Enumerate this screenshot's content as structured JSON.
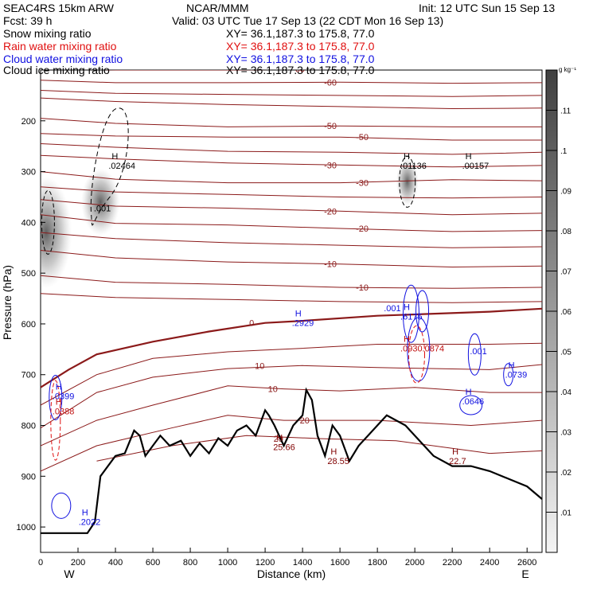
{
  "header": {
    "model": "SEAC4RS 15km ARW",
    "org": "NCAR/MMM",
    "init": "Init: 12 UTC Sun 15 Sep 13",
    "fcst": "Fcst:    39 h",
    "valid": "Valid: 03 UTC Tue 17 Sep 13 (22 CDT Mon 16 Sep 13)",
    "fields": [
      {
        "name": "Snow mixing ratio",
        "xy": "XY=   36.1,187.3 to 175.8, 77.0",
        "color": "#000000"
      },
      {
        "name": "Rain water mixing ratio",
        "xy": "XY=  36.1,187.3 to 175.8, 77.0",
        "color": "#e01010"
      },
      {
        "name": "Cloud water mixing ratio",
        "xy": "XY=  36.1,187.3 to 175.8, 77.0",
        "color": "#1010e0"
      },
      {
        "name": "Cloud ice mixing ratio",
        "xy": "XY=  36.1,187.3 to 175.8, 77.0",
        "color": "#000000"
      }
    ]
  },
  "chart_data": {
    "type": "contour",
    "xlabel": "Distance (km)",
    "ylabel": "Pressure (hPa)",
    "xlim": [
      0,
      2680
    ],
    "ylim": [
      1050,
      100
    ],
    "x_ticks": [
      0,
      200,
      400,
      600,
      800,
      1000,
      1200,
      1400,
      1600,
      1800,
      2000,
      2200,
      2400,
      2600
    ],
    "y_ticks": [
      200,
      300,
      400,
      500,
      600,
      700,
      800,
      900,
      1000
    ],
    "x_end_labels": {
      "left": "W",
      "right": "E"
    },
    "colorbar": {
      "unit": "g kg⁻¹",
      "levels": [
        ".01",
        ".02",
        ".03",
        ".04",
        ".05",
        ".06",
        ".07",
        ".08",
        ".09",
        ".1",
        ".11"
      ]
    },
    "temperature_contours": [
      {
        "label": "-60",
        "p": [
          [
            0,
            95
          ],
          [
            400,
            100
          ],
          [
            1000,
            100
          ],
          [
            1600,
            98
          ],
          [
            2200,
            98
          ],
          [
            2680,
            97
          ]
        ]
      },
      {
        "label": "-60",
        "p": [
          [
            0,
            120
          ],
          [
            400,
            125
          ],
          [
            1000,
            125
          ],
          [
            1600,
            124
          ],
          [
            2200,
            126
          ],
          [
            2680,
            125
          ]
        ]
      },
      {
        "label": "",
        "p": [
          [
            0,
            140
          ],
          [
            400,
            146
          ],
          [
            1000,
            148
          ],
          [
            1600,
            150
          ],
          [
            2200,
            152
          ],
          [
            2680,
            150
          ]
        ]
      },
      {
        "label": "",
        "p": [
          [
            0,
            155
          ],
          [
            400,
            162
          ],
          [
            1000,
            168
          ],
          [
            1600,
            172
          ],
          [
            2200,
            176
          ],
          [
            2680,
            175
          ]
        ]
      },
      {
        "label": "-50",
        "p": [
          [
            0,
            195
          ],
          [
            400,
            205
          ],
          [
            1000,
            212
          ],
          [
            1600,
            210
          ],
          [
            2200,
            212
          ],
          [
            2680,
            212
          ]
        ]
      },
      {
        "label": "-50",
        "p": [
          [
            0,
            225
          ],
          [
            400,
            230
          ],
          [
            1000,
            232
          ],
          [
            1600,
            232
          ],
          [
            2200,
            238
          ],
          [
            2680,
            238
          ]
        ]
      },
      {
        "label": "",
        "p": [
          [
            0,
            245
          ],
          [
            400,
            252
          ],
          [
            1000,
            260
          ],
          [
            1600,
            262
          ],
          [
            2200,
            266
          ],
          [
            2680,
            262
          ]
        ]
      },
      {
        "label": "-30",
        "p": [
          [
            0,
            268
          ],
          [
            400,
            275
          ],
          [
            1000,
            283
          ],
          [
            1600,
            287
          ],
          [
            2200,
            291
          ],
          [
            2680,
            288
          ]
        ]
      },
      {
        "label": "-30",
        "p": [
          [
            0,
            300
          ],
          [
            400,
            315
          ],
          [
            1000,
            322
          ],
          [
            1600,
            322
          ],
          [
            2200,
            316
          ],
          [
            2680,
            318
          ]
        ]
      },
      {
        "label": "",
        "p": [
          [
            0,
            330
          ],
          [
            400,
            340
          ],
          [
            1000,
            345
          ],
          [
            1600,
            350
          ],
          [
            2200,
            352
          ],
          [
            2680,
            350
          ]
        ]
      },
      {
        "label": "-20",
        "p": [
          [
            0,
            355
          ],
          [
            400,
            368
          ],
          [
            1000,
            372
          ],
          [
            1600,
            378
          ],
          [
            2200,
            385
          ],
          [
            2680,
            382
          ]
        ]
      },
      {
        "label": "-20",
        "p": [
          [
            0,
            385
          ],
          [
            400,
            402
          ],
          [
            1000,
            405
          ],
          [
            1600,
            412
          ],
          [
            2200,
            418
          ],
          [
            2680,
            416
          ]
        ]
      },
      {
        "label": "",
        "p": [
          [
            0,
            420
          ],
          [
            400,
            432
          ],
          [
            1000,
            440
          ],
          [
            1600,
            445
          ],
          [
            2200,
            450
          ],
          [
            2680,
            448
          ]
        ]
      },
      {
        "label": "-10",
        "p": [
          [
            0,
            455
          ],
          [
            400,
            470
          ],
          [
            1000,
            478
          ],
          [
            1600,
            482
          ],
          [
            2200,
            488
          ],
          [
            2680,
            486
          ]
        ]
      },
      {
        "label": "-10",
        "p": [
          [
            0,
            505
          ],
          [
            400,
            518
          ],
          [
            1000,
            522
          ],
          [
            1600,
            528
          ],
          [
            2200,
            530
          ],
          [
            2680,
            528
          ]
        ]
      },
      {
        "label": "",
        "p": [
          [
            0,
            540
          ],
          [
            400,
            548
          ],
          [
            1000,
            552
          ],
          [
            1600,
            556
          ],
          [
            2200,
            558
          ],
          [
            2680,
            556
          ]
        ]
      },
      {
        "label": "0",
        "p": [
          [
            0,
            725
          ],
          [
            150,
            690
          ],
          [
            300,
            660
          ],
          [
            600,
            635
          ],
          [
            900,
            615
          ],
          [
            1200,
            598
          ],
          [
            1400,
            594
          ],
          [
            1800,
            584
          ],
          [
            2400,
            576
          ],
          [
            2680,
            570
          ]
        ]
      },
      {
        "label": "",
        "p": [
          [
            0,
            760
          ],
          [
            300,
            700
          ],
          [
            600,
            668
          ],
          [
            1000,
            655
          ],
          [
            1400,
            648
          ],
          [
            1800,
            640
          ],
          [
            2400,
            640
          ],
          [
            2680,
            638
          ]
        ]
      },
      {
        "label": "10",
        "p": [
          [
            0,
            805
          ],
          [
            300,
            735
          ],
          [
            600,
            705
          ],
          [
            1000,
            688
          ],
          [
            1400,
            682
          ],
          [
            1800,
            686
          ],
          [
            2400,
            690
          ],
          [
            2680,
            680
          ]
        ]
      },
      {
        "label": "10",
        "p": [
          [
            0,
            840
          ],
          [
            300,
            790
          ],
          [
            600,
            760
          ],
          [
            1000,
            722
          ],
          [
            1300,
            728
          ],
          [
            1600,
            732
          ],
          [
            2000,
            725
          ],
          [
            2400,
            735
          ],
          [
            2680,
            735
          ]
        ]
      },
      {
        "label": "20",
        "p": [
          [
            0,
            890
          ],
          [
            300,
            840
          ],
          [
            700,
            805
          ],
          [
            1000,
            780
          ],
          [
            1300,
            790
          ],
          [
            1800,
            790
          ],
          [
            2300,
            800
          ],
          [
            2680,
            790
          ]
        ]
      },
      {
        "label": "20",
        "p": [
          [
            300,
            870
          ],
          [
            700,
            840
          ],
          [
            1100,
            820
          ],
          [
            1500,
            826
          ],
          [
            1900,
            830
          ],
          [
            2400,
            855
          ],
          [
            2680,
            850
          ]
        ]
      }
    ],
    "highs": [
      {
        "x": 380,
        "p": 288,
        "label": ".02464",
        "color": "#000000"
      },
      {
        "x": 1940,
        "p": 288,
        "label": ".01136",
        "color": "#000000"
      },
      {
        "x": 2270,
        "p": 288,
        "label": ".00157",
        "color": "#000000"
      },
      {
        "x": 1360,
        "p": 598,
        "label": ".2929",
        "color": "#1010e0"
      },
      {
        "x": 1940,
        "p": 585,
        "label": ".6175",
        "color": "#1010e0"
      },
      {
        "x": 1940,
        "p": 648,
        "label": ".0930.0874",
        "color": "#c01010"
      },
      {
        "x": 2270,
        "p": 752,
        "label": ".0646",
        "color": "#1010e0"
      },
      {
        "x": 2500,
        "p": 700,
        "label": ".0739",
        "color": "#1010e0"
      },
      {
        "x": 80,
        "p": 742,
        "label": ".0399",
        "color": "#1010e0"
      },
      {
        "x": 80,
        "p": 772,
        "label": ".0388",
        "color": "#c01010"
      },
      {
        "x": 220,
        "p": 990,
        "label": ".2022",
        "color": "#1010e0"
      },
      {
        "x": 1260,
        "p": 842,
        "label": "25.66",
        "color": "#800000"
      },
      {
        "x": 1550,
        "p": 870,
        "label": "28.55",
        "color": "#800000"
      },
      {
        "x": 2200,
        "p": 870,
        "label": "22.7",
        "color": "#800000"
      }
    ],
    "cloud_labels": [
      {
        "x": 330,
        "p": 378,
        "label": ".001",
        "color": "#000000"
      },
      {
        "x": 1880,
        "p": 575,
        "label": ".001",
        "color": "#1010e0"
      },
      {
        "x": 2340,
        "p": 660,
        "label": ".001",
        "color": "#1010e0"
      }
    ],
    "terrain": [
      [
        0,
        1012
      ],
      [
        100,
        1012
      ],
      [
        250,
        1012
      ],
      [
        290,
        990
      ],
      [
        320,
        900
      ],
      [
        400,
        860
      ],
      [
        450,
        855
      ],
      [
        500,
        810
      ],
      [
        530,
        820
      ],
      [
        560,
        860
      ],
      [
        600,
        840
      ],
      [
        640,
        820
      ],
      [
        690,
        840
      ],
      [
        750,
        830
      ],
      [
        800,
        860
      ],
      [
        850,
        835
      ],
      [
        900,
        855
      ],
      [
        950,
        825
      ],
      [
        1000,
        840
      ],
      [
        1050,
        810
      ],
      [
        1100,
        800
      ],
      [
        1150,
        820
      ],
      [
        1200,
        770
      ],
      [
        1220,
        780
      ],
      [
        1250,
        800
      ],
      [
        1300,
        840
      ],
      [
        1350,
        800
      ],
      [
        1400,
        780
      ],
      [
        1420,
        730
      ],
      [
        1450,
        750
      ],
      [
        1480,
        820
      ],
      [
        1520,
        860
      ],
      [
        1560,
        800
      ],
      [
        1600,
        820
      ],
      [
        1650,
        870
      ],
      [
        1700,
        840
      ],
      [
        1750,
        820
      ],
      [
        1800,
        800
      ],
      [
        1850,
        780
      ],
      [
        1900,
        790
      ],
      [
        1950,
        800
      ],
      [
        2000,
        820
      ],
      [
        2100,
        860
      ],
      [
        2200,
        880
      ],
      [
        2300,
        880
      ],
      [
        2400,
        890
      ],
      [
        2500,
        905
      ],
      [
        2600,
        920
      ],
      [
        2680,
        945
      ]
    ]
  }
}
